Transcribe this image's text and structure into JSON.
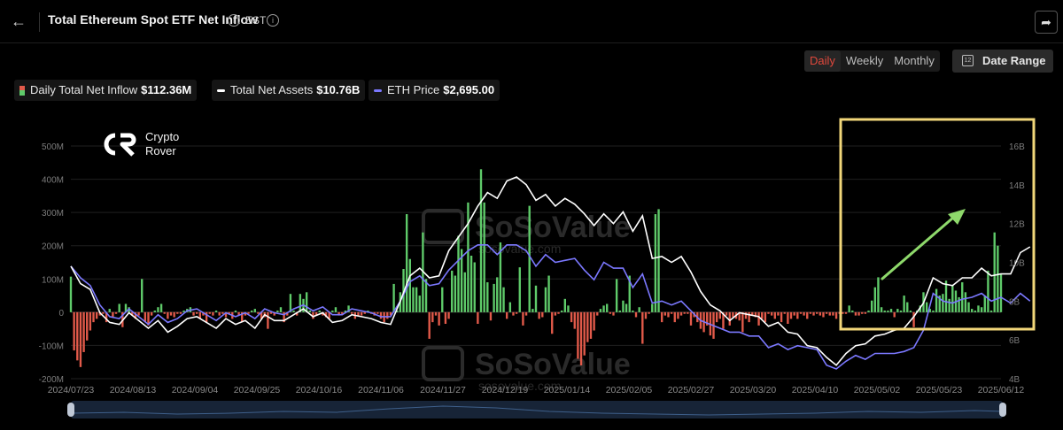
{
  "header": {
    "title": "Total Ethereum Spot ETF Net Inflow",
    "timezone": "EST"
  },
  "period_tabs": [
    {
      "label": "Daily",
      "active": true
    },
    {
      "label": "Weekly",
      "active": false
    },
    {
      "label": "Monthly",
      "active": false
    }
  ],
  "date_range_label": "Date Range",
  "legend": [
    {
      "label": "Daily Total Net Inflow",
      "value": "$112.36M"
    },
    {
      "label": "Total Net Assets",
      "value": "$10.76B"
    },
    {
      "label": "ETH Price",
      "value": "$2,695.00"
    }
  ],
  "brand": {
    "line1": "Crypto",
    "line2": "Rover"
  },
  "watermark": {
    "name": "SoSoValue",
    "url": "sosovalue.com"
  },
  "colors": {
    "inflow_positive": "#5fcb6a",
    "inflow_negative": "#e25a4a",
    "net_assets_line": "#ffffff",
    "eth_price_line": "#7b78ff",
    "highlight_box": "#f2d77a",
    "arrow": "#8ed96b"
  },
  "chart_data": {
    "type": "bar",
    "left_axis": {
      "ylim": [
        -200,
        500
      ],
      "unit": "M",
      "ticks": [
        "-200M",
        "-100M",
        "0",
        "100M",
        "200M",
        "300M",
        "400M",
        "500M"
      ]
    },
    "right_axis": {
      "ylim": [
        4,
        16
      ],
      "unit": "B",
      "ticks": [
        "4B",
        "6B",
        "8B",
        "10B",
        "12B",
        "14B",
        "16B"
      ]
    },
    "x_tick_labels": [
      "2024/07/23",
      "2024/08/13",
      "2024/09/04",
      "2024/09/25",
      "2024/10/16",
      "2024/11/06",
      "2024/11/27",
      "2024/12/19",
      "2025/01/14",
      "2025/02/05",
      "2025/02/27",
      "2025/03/20",
      "2025/04/10",
      "2025/05/02",
      "2025/05/23",
      "2025/06/12"
    ],
    "grid": true,
    "series": [
      {
        "name": "Daily Total Net Inflow",
        "kind": "bar",
        "axis": "left",
        "values": [
          107,
          -115,
          -145,
          -165,
          -120,
          -85,
          -55,
          -30,
          -20,
          -10,
          -5,
          -30,
          10,
          -15,
          -5,
          25,
          -45,
          25,
          15,
          -10,
          -20,
          -10,
          100,
          -30,
          -40,
          -10,
          5,
          15,
          25,
          -5,
          -20,
          -10,
          -15,
          -5,
          -5,
          5,
          10,
          15,
          -10,
          -5,
          -20,
          -10,
          -30,
          -5,
          -10,
          5,
          -10,
          -5,
          -15,
          -5,
          -20,
          5,
          -10,
          -30,
          -10,
          -5,
          5,
          10,
          -5,
          -20,
          -15,
          -50,
          -5,
          -10,
          5,
          15,
          -30,
          -10,
          55,
          5,
          -10,
          55,
          40,
          60,
          5,
          -20,
          -10,
          5,
          -10,
          -15,
          -20,
          5,
          15,
          -10,
          -5,
          5,
          20,
          -5,
          -20,
          -10,
          -10,
          -5,
          5,
          -5,
          -10,
          -5,
          -20,
          -30,
          -20,
          -10,
          85,
          5,
          60,
          130,
          295,
          160,
          75,
          75,
          50,
          240,
          100,
          -80,
          -30,
          -10,
          -40,
          75,
          -35,
          -20,
          125,
          110,
          230,
          190,
          120,
          330,
          170,
          150,
          -35,
          430,
          330,
          90,
          -25,
          85,
          105,
          210,
          75,
          -20,
          30,
          -10,
          -5,
          135,
          -40,
          -10,
          320,
          10,
          80,
          -20,
          -15,
          75,
          110,
          -65,
          -10,
          -5,
          5,
          40,
          20,
          -30,
          -50,
          -140,
          -160,
          -130,
          -90,
          -80,
          -55,
          -10,
          10,
          20,
          25,
          -5,
          -10,
          100,
          5,
          35,
          25,
          110,
          5,
          -15,
          15,
          -95,
          -20,
          -5,
          25,
          295,
          310,
          -30,
          -10,
          -15,
          -5,
          -30,
          -20,
          -10,
          -5,
          -5,
          -40,
          -15,
          -30,
          -50,
          -60,
          -40,
          -70,
          -80,
          -30,
          -20,
          -50,
          -10,
          -40,
          -15,
          -20,
          -25,
          -60,
          -20,
          -30,
          -10,
          -15,
          -40,
          -20,
          -30,
          -5,
          -10,
          -20,
          -10,
          -30,
          -5,
          -35,
          -20,
          -10,
          -20,
          -5,
          -10,
          -20,
          -5,
          -10,
          -5,
          -10,
          -15,
          -5,
          -10,
          -10,
          -20,
          -5,
          -5,
          -5,
          20,
          5,
          -10,
          -10,
          -5,
          -5,
          5,
          35,
          75,
          105,
          15,
          5,
          5,
          10,
          -15,
          10,
          5,
          50,
          30,
          5,
          -45,
          5,
          20,
          60,
          30,
          10,
          5,
          70,
          50,
          55,
          95,
          40,
          80,
          65,
          45,
          90,
          60,
          30,
          10,
          5,
          20,
          15,
          50,
          125,
          5,
          240,
          200,
          115
        ]
      },
      {
        "name": "Total Net Assets",
        "kind": "line",
        "axis": "right",
        "points": [
          [
            0,
            9.8
          ],
          [
            3,
            8.9
          ],
          [
            6,
            8.6
          ],
          [
            9,
            7.4
          ],
          [
            12,
            6.9
          ],
          [
            15,
            6.8
          ],
          [
            18,
            7.4
          ],
          [
            21,
            7.0
          ],
          [
            24,
            6.6
          ],
          [
            27,
            7.0
          ],
          [
            30,
            6.4
          ],
          [
            33,
            6.7
          ],
          [
            36,
            7.1
          ],
          [
            39,
            7.2
          ],
          [
            42,
            6.9
          ],
          [
            45,
            6.6
          ],
          [
            48,
            7.1
          ],
          [
            51,
            6.8
          ],
          [
            54,
            7.0
          ],
          [
            57,
            6.6
          ],
          [
            60,
            7.3
          ],
          [
            63,
            7.0
          ],
          [
            66,
            7.0
          ],
          [
            69,
            7.3
          ],
          [
            72,
            7.6
          ],
          [
            75,
            7.2
          ],
          [
            78,
            7.4
          ],
          [
            81,
            6.9
          ],
          [
            84,
            7.0
          ],
          [
            87,
            7.3
          ],
          [
            90,
            7.2
          ],
          [
            93,
            7.1
          ],
          [
            96,
            6.9
          ],
          [
            99,
            6.8
          ],
          [
            102,
            8.0
          ],
          [
            105,
            9.3
          ],
          [
            108,
            9.7
          ],
          [
            111,
            9.2
          ],
          [
            114,
            9.3
          ],
          [
            117,
            10.6
          ],
          [
            120,
            11.3
          ],
          [
            123,
            12.0
          ],
          [
            126,
            12.9
          ],
          [
            129,
            13.6
          ],
          [
            132,
            13.3
          ],
          [
            135,
            14.2
          ],
          [
            138,
            14.4
          ],
          [
            141,
            14.0
          ],
          [
            144,
            13.2
          ],
          [
            147,
            13.5
          ],
          [
            150,
            12.9
          ],
          [
            153,
            13.3
          ],
          [
            156,
            13.0
          ],
          [
            159,
            12.5
          ],
          [
            162,
            11.9
          ],
          [
            165,
            12.5
          ],
          [
            168,
            12.0
          ],
          [
            171,
            12.6
          ],
          [
            174,
            11.6
          ],
          [
            177,
            12.4
          ],
          [
            180,
            10.2
          ],
          [
            183,
            10.3
          ],
          [
            186,
            10.0
          ],
          [
            189,
            10.3
          ],
          [
            192,
            9.5
          ],
          [
            195,
            8.5
          ],
          [
            198,
            7.8
          ],
          [
            201,
            7.5
          ],
          [
            204,
            7.0
          ],
          [
            207,
            7.4
          ],
          [
            210,
            7.3
          ],
          [
            213,
            7.2
          ],
          [
            216,
            6.7
          ],
          [
            219,
            6.9
          ],
          [
            222,
            6.4
          ],
          [
            225,
            6.3
          ],
          [
            228,
            5.7
          ],
          [
            231,
            5.6
          ],
          [
            234,
            5.1
          ],
          [
            237,
            4.7
          ],
          [
            240,
            5.3
          ],
          [
            243,
            5.7
          ],
          [
            246,
            5.8
          ],
          [
            249,
            6.2
          ],
          [
            252,
            6.3
          ],
          [
            255,
            6.5
          ],
          [
            258,
            6.6
          ],
          [
            261,
            7.2
          ],
          [
            264,
            7.9
          ],
          [
            267,
            9.2
          ],
          [
            270,
            8.9
          ],
          [
            273,
            8.8
          ],
          [
            276,
            9.2
          ],
          [
            279,
            9.2
          ],
          [
            282,
            9.7
          ],
          [
            285,
            9.3
          ],
          [
            288,
            9.4
          ],
          [
            291,
            9.4
          ],
          [
            294,
            10.5
          ],
          [
            297,
            10.8
          ]
        ]
      },
      {
        "name": "ETH Price",
        "kind": "line",
        "axis": "right",
        "points": [
          [
            0,
            9.8
          ],
          [
            3,
            9.2
          ],
          [
            6,
            8.8
          ],
          [
            9,
            7.8
          ],
          [
            12,
            7.2
          ],
          [
            15,
            7.1
          ],
          [
            18,
            7.6
          ],
          [
            21,
            7.2
          ],
          [
            24,
            6.8
          ],
          [
            27,
            7.3
          ],
          [
            30,
            6.9
          ],
          [
            33,
            7.1
          ],
          [
            36,
            7.5
          ],
          [
            39,
            7.6
          ],
          [
            42,
            7.3
          ],
          [
            45,
            7.0
          ],
          [
            48,
            7.4
          ],
          [
            51,
            7.2
          ],
          [
            54,
            7.4
          ],
          [
            57,
            7.1
          ],
          [
            60,
            7.6
          ],
          [
            63,
            7.4
          ],
          [
            66,
            7.3
          ],
          [
            69,
            7.6
          ],
          [
            72,
            7.8
          ],
          [
            75,
            7.5
          ],
          [
            78,
            7.7
          ],
          [
            81,
            7.3
          ],
          [
            84,
            7.3
          ],
          [
            87,
            7.6
          ],
          [
            90,
            7.5
          ],
          [
            93,
            7.4
          ],
          [
            96,
            7.2
          ],
          [
            99,
            7.2
          ],
          [
            102,
            8.0
          ],
          [
            105,
            9.0
          ],
          [
            108,
            9.3
          ],
          [
            111,
            8.8
          ],
          [
            114,
            8.9
          ],
          [
            117,
            9.6
          ],
          [
            120,
            10.1
          ],
          [
            123,
            10.6
          ],
          [
            126,
            10.9
          ],
          [
            129,
            10.9
          ],
          [
            132,
            10.4
          ],
          [
            135,
            10.9
          ],
          [
            138,
            10.9
          ],
          [
            141,
            10.6
          ],
          [
            144,
            9.8
          ],
          [
            147,
            10.4
          ],
          [
            150,
            10.0
          ],
          [
            153,
            10.1
          ],
          [
            156,
            10.2
          ],
          [
            159,
            9.6
          ],
          [
            162,
            9.1
          ],
          [
            165,
            10.0
          ],
          [
            168,
            9.7
          ],
          [
            171,
            9.7
          ],
          [
            174,
            8.7
          ],
          [
            177,
            9.4
          ],
          [
            180,
            7.9
          ],
          [
            183,
            8.0
          ],
          [
            186,
            7.8
          ],
          [
            189,
            8.0
          ],
          [
            192,
            7.5
          ],
          [
            195,
            7.0
          ],
          [
            198,
            6.8
          ],
          [
            201,
            6.6
          ],
          [
            204,
            6.4
          ],
          [
            207,
            6.4
          ],
          [
            210,
            6.2
          ],
          [
            213,
            6.2
          ],
          [
            216,
            5.6
          ],
          [
            219,
            5.8
          ],
          [
            222,
            5.5
          ],
          [
            225,
            5.7
          ],
          [
            228,
            5.6
          ],
          [
            231,
            5.5
          ],
          [
            234,
            4.7
          ],
          [
            237,
            4.5
          ],
          [
            240,
            4.9
          ],
          [
            243,
            5.2
          ],
          [
            246,
            5.0
          ],
          [
            249,
            5.3
          ],
          [
            252,
            5.3
          ],
          [
            255,
            5.3
          ],
          [
            258,
            5.4
          ],
          [
            261,
            5.6
          ],
          [
            264,
            6.5
          ],
          [
            267,
            8.4
          ],
          [
            270,
            8.0
          ],
          [
            273,
            7.9
          ],
          [
            276,
            8.1
          ],
          [
            279,
            8.2
          ],
          [
            282,
            8.4
          ],
          [
            285,
            8.0
          ],
          [
            288,
            8.2
          ],
          [
            291,
            7.9
          ],
          [
            294,
            8.4
          ],
          [
            297,
            8.0
          ]
        ]
      }
    ]
  }
}
